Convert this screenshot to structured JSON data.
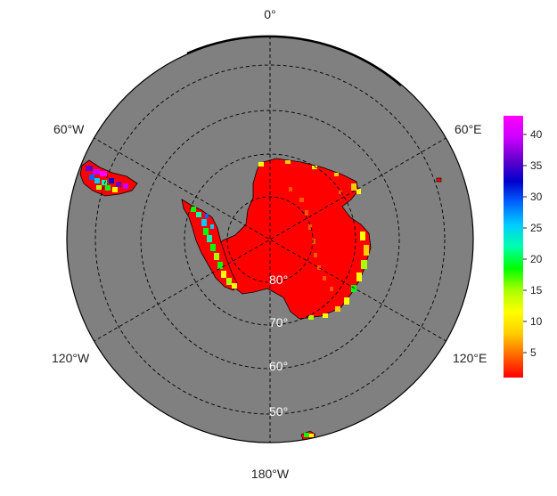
{
  "map": {
    "projection": "south polar stereographic",
    "ocean_color": "#808080",
    "border_color": "#000000",
    "land_base_color": "#ff0000",
    "graticule_style": "dashed",
    "longitude_labels": {
      "top": "0°",
      "upper_left": "60°W",
      "upper_right": "60°E",
      "lower_left": "120°W",
      "lower_right": "120°E",
      "bottom": "180°W"
    },
    "latitude_labels": [
      "80°",
      "70°",
      "60°",
      "50°"
    ]
  },
  "colorbar": {
    "ticks": [
      "5",
      "10",
      "15",
      "20",
      "25",
      "30",
      "35",
      "40"
    ],
    "min": 1,
    "max": 43,
    "colors": [
      "#ff0000",
      "#ff6600",
      "#ffcc00",
      "#ffff00",
      "#aaff00",
      "#00ff00",
      "#00ffaa",
      "#00ccff",
      "#0066ff",
      "#0000cc",
      "#6600cc",
      "#cc00ff",
      "#ff00ff"
    ]
  }
}
